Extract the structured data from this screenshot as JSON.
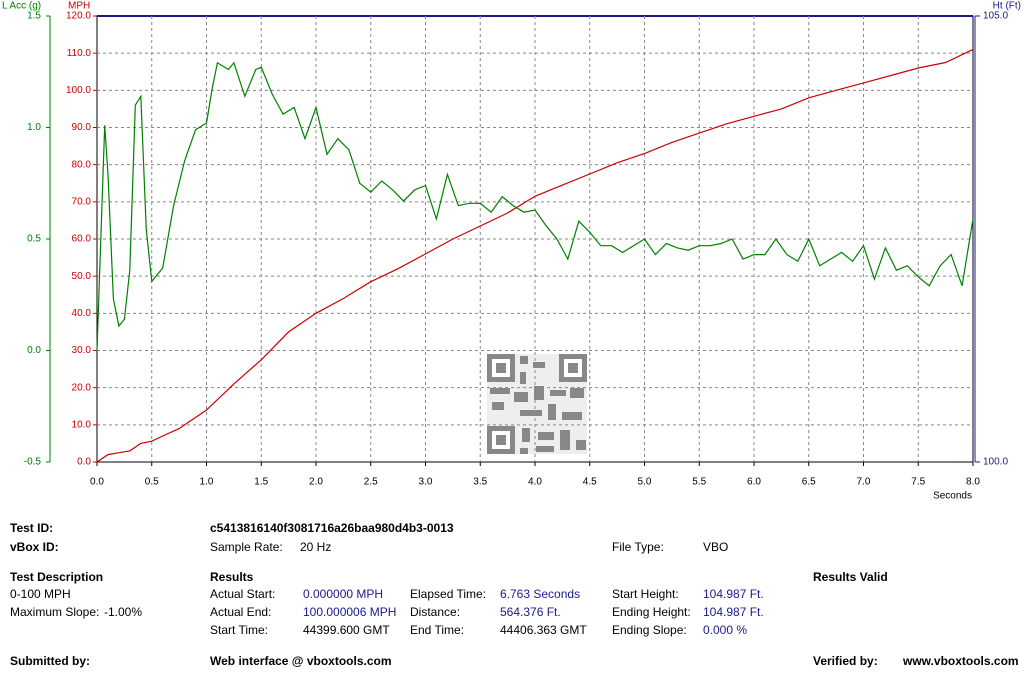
{
  "chart_data": {
    "type": "line",
    "x_label": "Seconds",
    "y_label": "MPH",
    "y2_label": "Ht (Ft)",
    "y3_label": "L Acc (g)",
    "y_color": "#cc0000",
    "y2_color": "#1a1a8c",
    "y3_color": "#008000",
    "grid": true,
    "xlim": [
      0,
      8
    ],
    "xticks": [
      {
        "value": 0,
        "label": "0.0"
      },
      0.5,
      {
        "value": 1,
        "label": "1.0"
      },
      1.5,
      {
        "value": 2,
        "label": "2.0"
      },
      2.5,
      {
        "value": 3,
        "label": "3.0"
      },
      3.5,
      {
        "value": 4,
        "label": "4.0"
      },
      4.5,
      {
        "value": 5,
        "label": "5.0"
      },
      5.5,
      {
        "value": 6,
        "label": "6.0"
      },
      6.5,
      {
        "value": 7,
        "label": "7.0"
      },
      7.5,
      {
        "value": 8,
        "label": "8.0"
      }
    ],
    "ylim": [
      0,
      120
    ],
    "yticks": [
      {
        "value": 0,
        "label": "0.0"
      },
      {
        "value": 10,
        "label": "10.0"
      },
      {
        "value": 20,
        "label": "20.0"
      },
      {
        "value": 30,
        "label": "30.0"
      },
      {
        "value": 40,
        "label": "40.0"
      },
      {
        "value": 50,
        "label": "50.0"
      },
      {
        "value": 60,
        "label": "60.0"
      },
      {
        "value": 70,
        "label": "70.0"
      },
      {
        "value": 80,
        "label": "80.0"
      },
      {
        "value": 90,
        "label": "90.0"
      },
      {
        "value": 100,
        "label": "100.0"
      },
      {
        "value": 110,
        "label": "110.0"
      },
      {
        "value": 120,
        "label": "120.0"
      }
    ],
    "y2lim": [
      100,
      105
    ],
    "y2ticks": [
      {
        "value": 100,
        "label": "100.0"
      },
      {
        "value": 105,
        "label": "105.0"
      }
    ],
    "y3lim": [
      -0.5,
      1.5
    ],
    "y3ticks": [
      -0.5,
      {
        "value": 0,
        "label": "0.0"
      },
      0.5,
      {
        "value": 1,
        "label": "1.0"
      },
      1.5
    ],
    "series": [
      {
        "name": "MPH",
        "color": "#cc0000",
        "axis": "y",
        "x": [
          0,
          0.1,
          0.2,
          0.3,
          0.4,
          0.5,
          0.6,
          0.75,
          1.0,
          1.25,
          1.5,
          1.75,
          2.0,
          2.25,
          2.5,
          2.75,
          3.0,
          3.25,
          3.5,
          3.75,
          4.0,
          4.25,
          4.5,
          4.75,
          5.0,
          5.25,
          5.5,
          5.75,
          6.0,
          6.25,
          6.5,
          6.75,
          7.0,
          7.25,
          7.5,
          7.75,
          8.0
        ],
        "values": [
          0,
          2,
          2.5,
          3,
          5,
          5.6,
          7,
          9,
          14,
          21,
          27.5,
          35,
          40,
          44,
          48.5,
          52,
          56,
          60,
          63.5,
          67,
          71.5,
          74.5,
          77.5,
          80.5,
          83,
          86,
          88.5,
          91,
          93,
          95,
          98,
          100,
          102,
          104,
          106,
          107.5,
          111
        ]
      },
      {
        "name": "L Acc (g)",
        "color": "#008000",
        "axis": "y3",
        "x": [
          0,
          0.07,
          0.1,
          0.15,
          0.2,
          0.25,
          0.3,
          0.35,
          0.4,
          0.45,
          0.5,
          0.6,
          0.7,
          0.8,
          0.9,
          1.0,
          1.05,
          1.1,
          1.2,
          1.25,
          1.35,
          1.45,
          1.5,
          1.6,
          1.7,
          1.8,
          1.9,
          2.0,
          2.1,
          2.2,
          2.3,
          2.4,
          2.5,
          2.6,
          2.7,
          2.8,
          2.9,
          3.0,
          3.1,
          3.2,
          3.3,
          3.4,
          3.5,
          3.6,
          3.7,
          3.8,
          3.9,
          4.0,
          4.1,
          4.2,
          4.3,
          4.4,
          4.5,
          4.6,
          4.7,
          4.8,
          4.9,
          5.0,
          5.1,
          5.2,
          5.3,
          5.4,
          5.5,
          5.6,
          5.7,
          5.8,
          5.9,
          6.0,
          6.1,
          6.2,
          6.3,
          6.4,
          6.5,
          6.6,
          6.7,
          6.8,
          6.9,
          7.0,
          7.1,
          7.2,
          7.3,
          7.4,
          7.5,
          7.6,
          7.7,
          7.8,
          7.9,
          8.0
        ],
        "values": [
          0.0,
          1.01,
          0.79,
          0.23,
          0.11,
          0.14,
          0.36,
          1.1,
          1.14,
          0.54,
          0.31,
          0.37,
          0.65,
          0.85,
          0.99,
          1.02,
          1.17,
          1.29,
          1.26,
          1.29,
          1.14,
          1.26,
          1.27,
          1.15,
          1.06,
          1.09,
          0.95,
          1.09,
          0.88,
          0.95,
          0.9,
          0.75,
          0.71,
          0.76,
          0.72,
          0.67,
          0.72,
          0.74,
          0.59,
          0.79,
          0.65,
          0.66,
          0.66,
          0.62,
          0.69,
          0.65,
          0.62,
          0.63,
          0.56,
          0.5,
          0.41,
          0.58,
          0.53,
          0.47,
          0.47,
          0.44,
          0.47,
          0.5,
          0.43,
          0.48,
          0.46,
          0.45,
          0.47,
          0.47,
          0.48,
          0.5,
          0.41,
          0.43,
          0.43,
          0.5,
          0.43,
          0.4,
          0.5,
          0.38,
          0.41,
          0.44,
          0.4,
          0.47,
          0.32,
          0.46,
          0.36,
          0.38,
          0.33,
          0.29,
          0.38,
          0.43,
          0.29,
          0.59
        ]
      }
    ]
  },
  "report": {
    "test_id_label": "Test ID:",
    "test_id": "c5413816140f3081716a26baa980d4b3-0013",
    "vbox_id_label": "vBox ID:",
    "sample_rate_label": "Sample Rate:",
    "sample_rate": "20 Hz",
    "file_type_label": "File Type:",
    "file_type": "VBO",
    "description_heading": "Test Description",
    "description": "0-100 MPH",
    "max_slope_label": "Maximum Slope:",
    "max_slope": "-1.00%",
    "results_heading": "Results",
    "results": [
      [
        "Actual Start:",
        "0.000000 MPH"
      ],
      [
        "Actual End:",
        "100.000006 MPH"
      ],
      [
        "Start Time:",
        "44399.600 GMT"
      ],
      [
        "Elapsed Time:",
        "6.763 Seconds"
      ],
      [
        "Distance:",
        "564.376 Ft."
      ],
      [
        "End Time:",
        "44406.363 GMT"
      ],
      [
        "Start Height:",
        "104.987 Ft."
      ],
      [
        "Ending Height:",
        "104.987 Ft."
      ],
      [
        "Ending Slope:",
        "0.000 %"
      ]
    ],
    "results_valid": "Results Valid",
    "submitted_label": "Submitted by:",
    "web_interface": "Web interface @ vboxtools.com",
    "verified_label": "Verified by:",
    "verified_by": "www.vboxtools.com"
  }
}
